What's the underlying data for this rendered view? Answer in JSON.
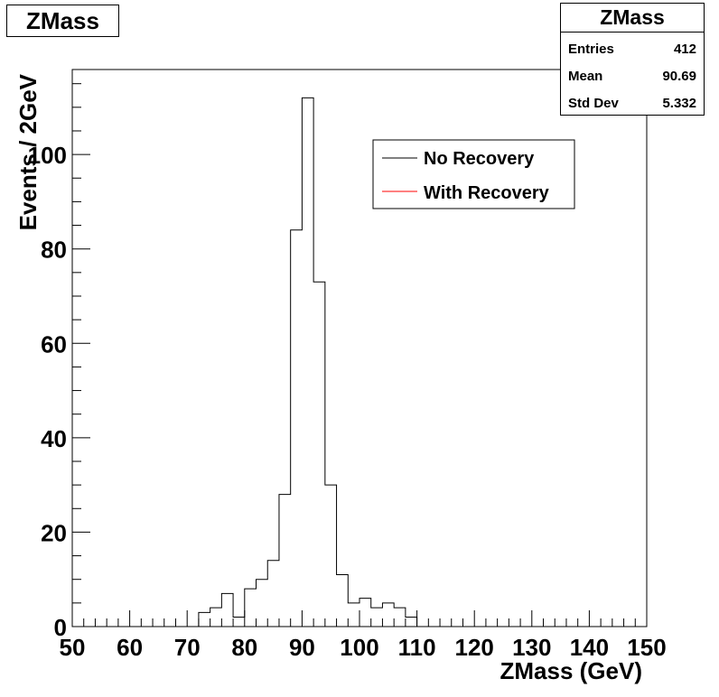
{
  "title": "ZMass",
  "stats": {
    "title": "ZMass",
    "rows": [
      {
        "label": "Entries",
        "value": "412"
      },
      {
        "label": "Mean",
        "value": "90.69"
      },
      {
        "label": "Std Dev",
        "value": "5.332"
      }
    ]
  },
  "legend": {
    "entries": [
      {
        "label": "No Recovery",
        "color": "#000000"
      },
      {
        "label": "With Recovery",
        "color": "#ff0000"
      }
    ]
  },
  "chart_data": {
    "type": "histogram",
    "title": "ZMass",
    "xlabel": "ZMass (GeV)",
    "ylabel": "Events / 2GeV",
    "xlim": [
      50,
      150
    ],
    "ylim": [
      0,
      118
    ],
    "x_ticks": [
      50,
      60,
      70,
      80,
      90,
      100,
      110,
      120,
      130,
      140,
      150
    ],
    "y_ticks": [
      0,
      20,
      40,
      60,
      80,
      100
    ],
    "bin_width": 2,
    "series": [
      {
        "name": "No Recovery",
        "color": "#000000",
        "bin_low_edges": [
          72,
          74,
          76,
          78,
          80,
          82,
          84,
          86,
          88,
          90,
          92,
          94,
          96,
          98,
          100,
          102,
          104,
          106,
          108
        ],
        "values": [
          3,
          4,
          7,
          2,
          8,
          10,
          14,
          28,
          84,
          112,
          73,
          30,
          11,
          5,
          6,
          4,
          5,
          4,
          2
        ]
      },
      {
        "name": "With Recovery",
        "color": "#ff0000",
        "bin_low_edges": [],
        "values": []
      }
    ],
    "legend_position": "top-right",
    "grid": false
  }
}
